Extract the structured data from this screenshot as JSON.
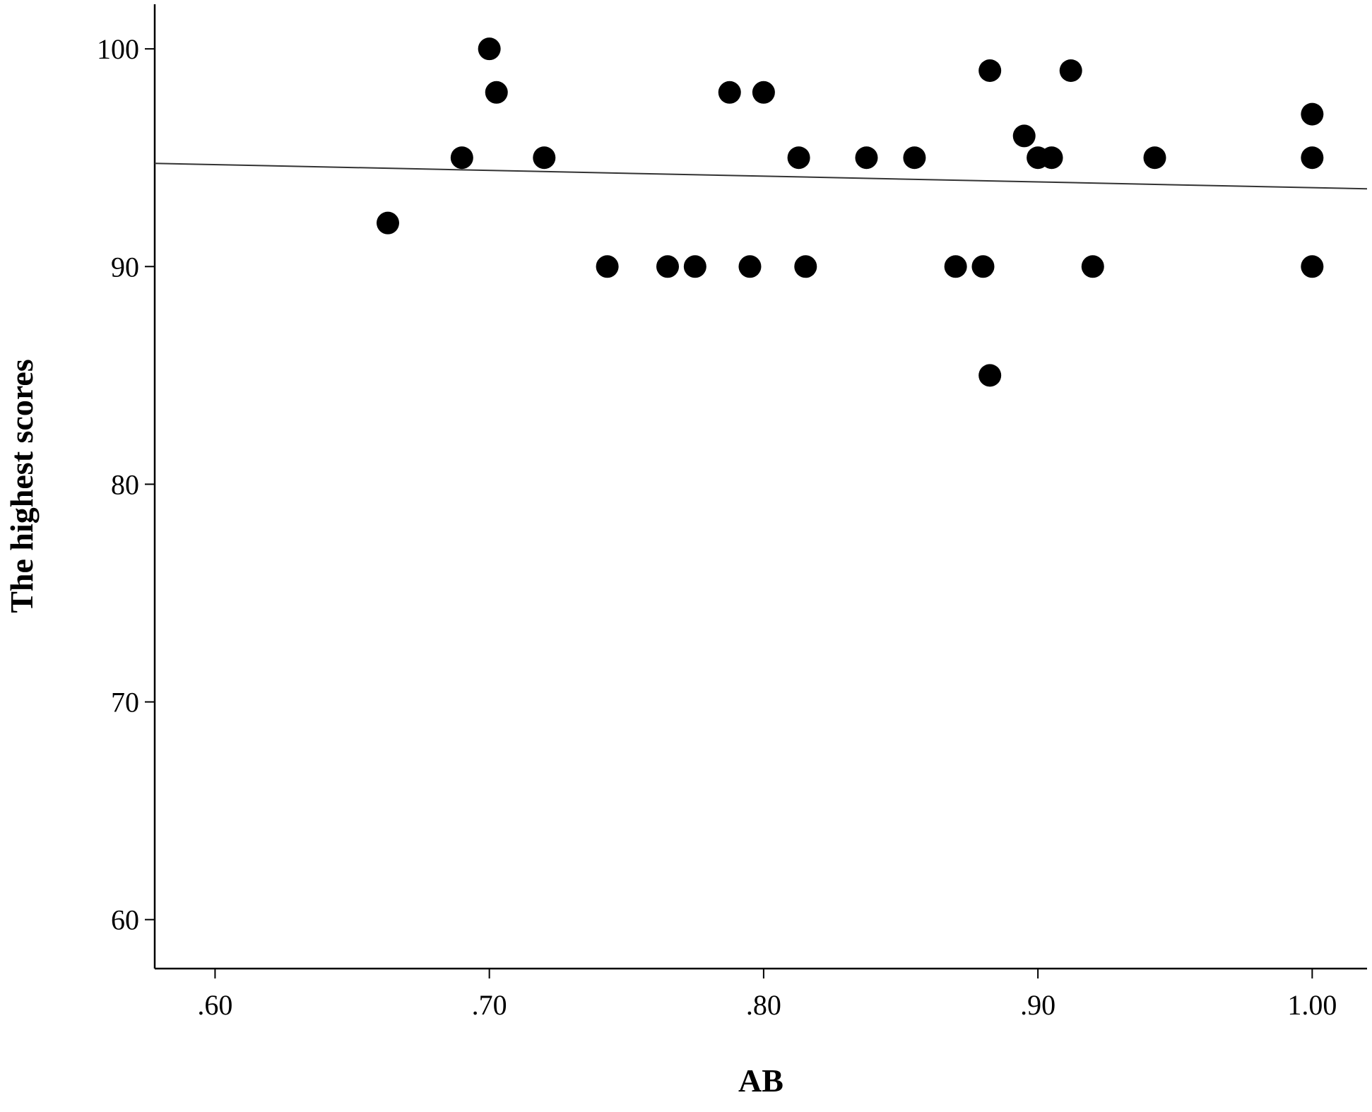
{
  "chart_data": {
    "type": "scatter",
    "x_label": "AB",
    "y_label": "The highest scores",
    "x": [
      0.663,
      0.69,
      0.7,
      0.7026,
      0.72,
      0.743,
      0.765,
      0.775,
      0.7876,
      0.795,
      0.8,
      0.8128,
      0.8153,
      0.8375,
      0.855,
      0.87,
      0.88,
      0.8825,
      0.8825,
      0.895,
      0.9,
      0.905,
      0.912,
      0.92,
      0.9426,
      1.0,
      1.0,
      1.0
    ],
    "values": [
      92,
      95,
      100,
      98,
      95,
      90,
      90,
      90,
      98,
      90,
      98,
      95,
      90,
      95,
      95,
      90,
      90,
      99,
      85,
      96,
      95,
      95,
      99,
      90,
      95,
      97,
      95,
      90
    ],
    "color": "#000000",
    "fit_line": {
      "x": [
        0.578,
        1.02
      ],
      "values": [
        94.74,
        93.57
      ],
      "color": "#333333"
    },
    "xlim": [
      0.578,
      1.02
    ],
    "ylim": [
      57.75,
      102.05
    ],
    "xticks": [
      {
        "value": 0.6,
        "label": ".60"
      },
      {
        "value": 0.7,
        "label": ".70"
      },
      {
        "value": 0.8,
        "label": ".80"
      },
      {
        "value": 0.9,
        "label": ".90"
      },
      {
        "value": 1.0,
        "label": "1.00"
      }
    ],
    "yticks": [
      60,
      70,
      80,
      90,
      100
    ]
  }
}
